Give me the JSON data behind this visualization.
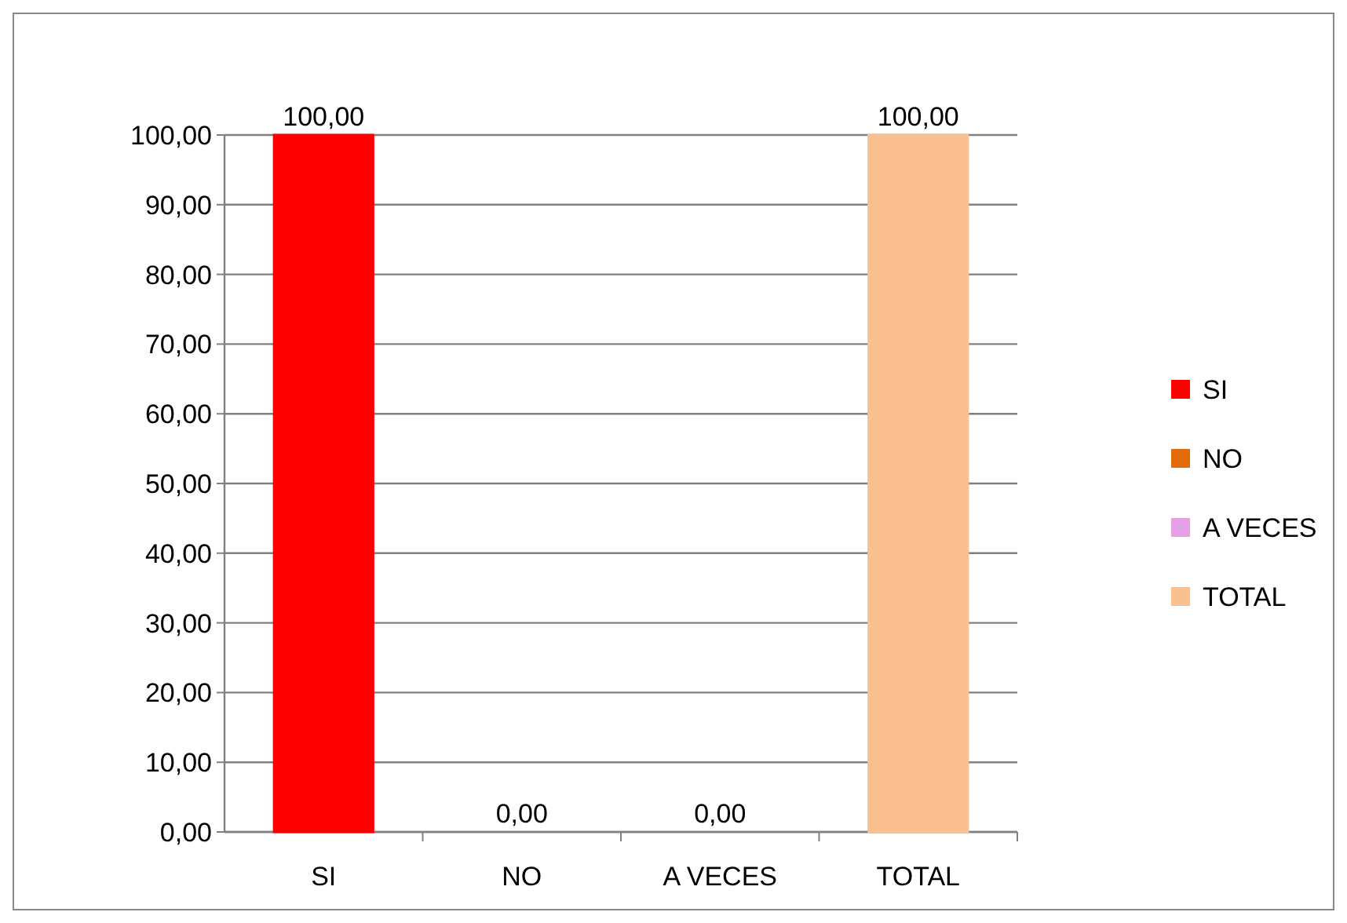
{
  "chart_data": {
    "type": "bar",
    "categories": [
      "SI",
      "NO",
      "A VECES",
      "TOTAL"
    ],
    "series": [
      {
        "name": "SI",
        "color": "#ff0000",
        "values": [
          100,
          null,
          null,
          null
        ],
        "value_labels": [
          "100,00",
          null,
          null,
          null
        ]
      },
      {
        "name": "NO",
        "color": "#e36c09",
        "values": [
          null,
          0,
          null,
          null
        ],
        "value_labels": [
          null,
          "0,00",
          null,
          null
        ]
      },
      {
        "name": "A VECES",
        "color": "#e6a0e6",
        "values": [
          null,
          null,
          0,
          null
        ],
        "value_labels": [
          null,
          null,
          "0,00",
          null
        ]
      },
      {
        "name": "TOTAL",
        "color": "#fac090",
        "values": [
          null,
          null,
          null,
          100
        ],
        "value_labels": [
          null,
          null,
          null,
          "100,00"
        ]
      }
    ],
    "ylim": [
      0,
      100
    ],
    "yticks": [
      {
        "value": 0,
        "label": "0,00"
      },
      {
        "value": 10,
        "label": "10,00"
      },
      {
        "value": 20,
        "label": "20,00"
      },
      {
        "value": 30,
        "label": "30,00"
      },
      {
        "value": 40,
        "label": "40,00"
      },
      {
        "value": 50,
        "label": "50,00"
      },
      {
        "value": 60,
        "label": "60,00"
      },
      {
        "value": 70,
        "label": "70,00"
      },
      {
        "value": 80,
        "label": "80,00"
      },
      {
        "value": 90,
        "label": "90,00"
      },
      {
        "value": 100,
        "label": "100,00"
      }
    ],
    "grid": "y",
    "legend": "right"
  }
}
